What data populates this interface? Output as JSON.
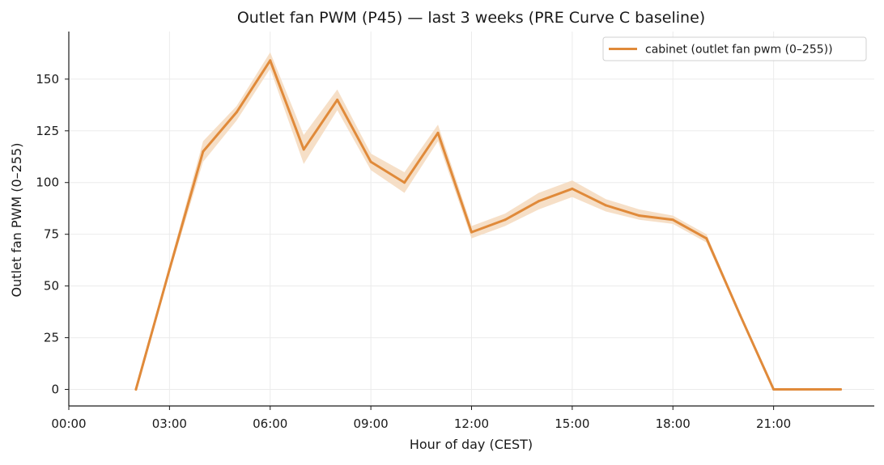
{
  "chart_data": {
    "type": "line",
    "title": "Outlet fan PWM (P45) — last 3 weeks (PRE Curve C baseline)",
    "xlabel": "Hour of day (CEST)",
    "ylabel": "Outlet fan PWM (0–255)",
    "xlim": [
      0,
      24
    ],
    "ylim": [
      -8,
      173
    ],
    "x_ticks": [
      0,
      3,
      6,
      9,
      12,
      15,
      18,
      21
    ],
    "x_tick_labels": [
      "00:00",
      "03:00",
      "06:00",
      "09:00",
      "12:00",
      "15:00",
      "18:00",
      "21:00"
    ],
    "y_ticks": [
      0,
      25,
      50,
      75,
      100,
      125,
      150
    ],
    "y_tick_labels": [
      "0",
      "25",
      "50",
      "75",
      "100",
      "125",
      "150"
    ],
    "grid": true,
    "legend_position": "upper right",
    "series": [
      {
        "name": "cabinet (outlet fan pwm (0–255))",
        "color": "#e08a3a",
        "band_color": "#f5d9bd",
        "x": [
          2,
          3,
          4,
          5,
          6,
          7,
          8,
          9,
          10,
          11,
          12,
          13,
          14,
          15,
          16,
          17,
          18,
          19,
          20,
          21,
          22,
          23
        ],
        "y": [
          0,
          58,
          115,
          134,
          159,
          116,
          140,
          110,
          100,
          124,
          76,
          82,
          91,
          97,
          89,
          84,
          82,
          73,
          36,
          0,
          0,
          0
        ],
        "y_lower": [
          0,
          56,
          110,
          130,
          155,
          109,
          135,
          106,
          95,
          120,
          73,
          79,
          87,
          93,
          86,
          82,
          80,
          71,
          35,
          0,
          0,
          0
        ],
        "y_upper": [
          0,
          60,
          120,
          137,
          163,
          123,
          145,
          114,
          105,
          128,
          79,
          85,
          95,
          101,
          92,
          87,
          84,
          75,
          37,
          0,
          0,
          0
        ]
      }
    ]
  }
}
